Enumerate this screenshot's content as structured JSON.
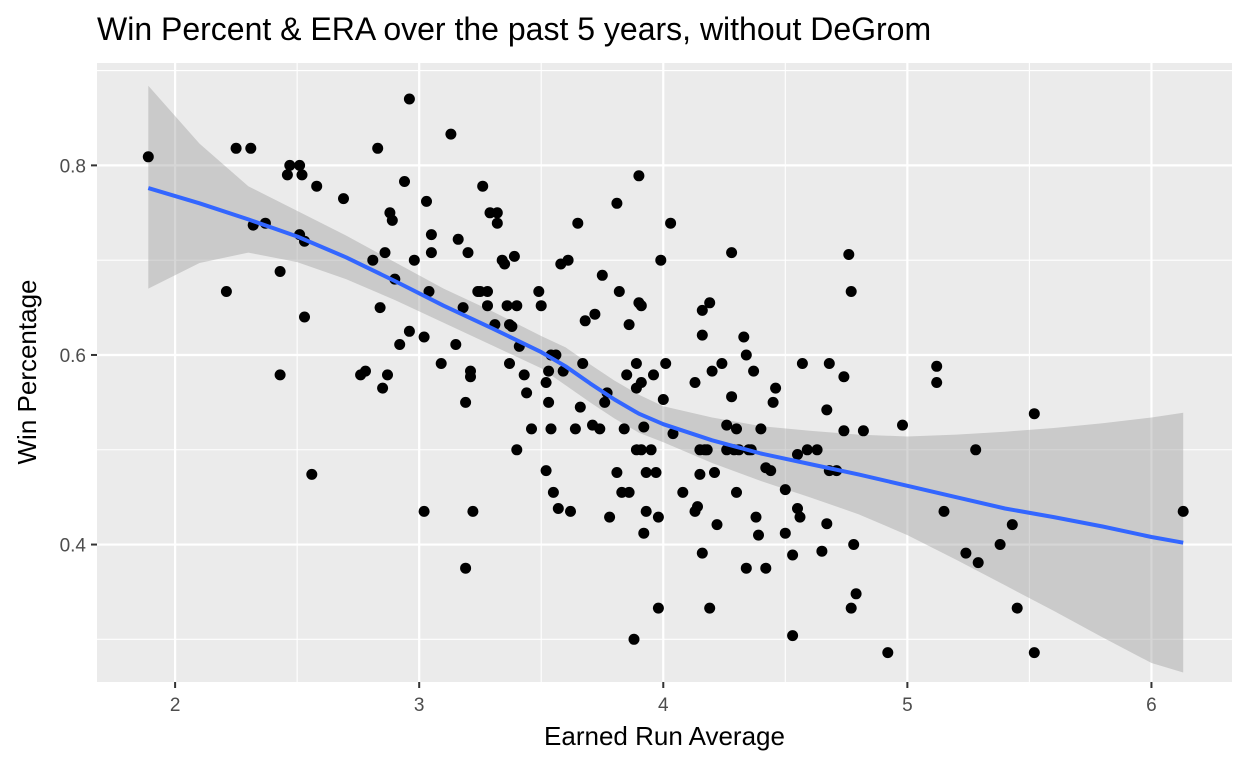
{
  "chart_data": {
    "type": "scatter",
    "title": "Win Percent & ERA over the past 5 years, without DeGrom",
    "xlabel": "Earned Run Average",
    "ylabel": "Win Percentage",
    "xlim": [
      1.68,
      6.33
    ],
    "ylim": [
      0.255,
      0.908
    ],
    "x_ticks": [
      2,
      3,
      4,
      5,
      6
    ],
    "x_tick_labels": [
      "2",
      "3",
      "4",
      "5",
      "6"
    ],
    "y_ticks": [
      0.4,
      0.6,
      0.8
    ],
    "y_tick_labels": [
      "0.4",
      "0.6",
      "0.8"
    ],
    "grid": true,
    "colors": {
      "panel": "#ebebeb",
      "grid": "#ffffff",
      "points": "#000000",
      "trend": "#3366ff",
      "ribbon": "#999999"
    },
    "points": [
      [
        1.89,
        0.809
      ],
      [
        2.21,
        0.667
      ],
      [
        2.25,
        0.818
      ],
      [
        2.31,
        0.818
      ],
      [
        2.32,
        0.737
      ],
      [
        2.37,
        0.739
      ],
      [
        2.43,
        0.688
      ],
      [
        2.43,
        0.579
      ],
      [
        2.46,
        0.79
      ],
      [
        2.47,
        0.8
      ],
      [
        2.51,
        0.8
      ],
      [
        2.51,
        0.727
      ],
      [
        2.52,
        0.79
      ],
      [
        2.53,
        0.72
      ],
      [
        2.53,
        0.64
      ],
      [
        2.56,
        0.474
      ],
      [
        2.58,
        0.778
      ],
      [
        2.69,
        0.765
      ],
      [
        2.76,
        0.579
      ],
      [
        2.78,
        0.583
      ],
      [
        2.81,
        0.7
      ],
      [
        2.83,
        0.818
      ],
      [
        2.84,
        0.65
      ],
      [
        2.85,
        0.565
      ],
      [
        2.86,
        0.708
      ],
      [
        2.87,
        0.579
      ],
      [
        2.88,
        0.75
      ],
      [
        2.89,
        0.742
      ],
      [
        2.9,
        0.68
      ],
      [
        2.92,
        0.611
      ],
      [
        2.94,
        0.783
      ],
      [
        2.96,
        0.625
      ],
      [
        2.96,
        0.87
      ],
      [
        2.98,
        0.7
      ],
      [
        3.02,
        0.619
      ],
      [
        3.02,
        0.435
      ],
      [
        3.03,
        0.762
      ],
      [
        3.04,
        0.667
      ],
      [
        3.05,
        0.727
      ],
      [
        3.05,
        0.708
      ],
      [
        3.09,
        0.591
      ],
      [
        3.13,
        0.833
      ],
      [
        3.15,
        0.611
      ],
      [
        3.16,
        0.722
      ],
      [
        3.18,
        0.65
      ],
      [
        3.19,
        0.55
      ],
      [
        3.19,
        0.375
      ],
      [
        3.2,
        0.708
      ],
      [
        3.21,
        0.583
      ],
      [
        3.21,
        0.577
      ],
      [
        3.22,
        0.435
      ],
      [
        3.24,
        0.667
      ],
      [
        3.25,
        0.667
      ],
      [
        3.26,
        0.778
      ],
      [
        3.28,
        0.652
      ],
      [
        3.28,
        0.667
      ],
      [
        3.29,
        0.75
      ],
      [
        3.31,
        0.632
      ],
      [
        3.32,
        0.75
      ],
      [
        3.32,
        0.739
      ],
      [
        3.34,
        0.7
      ],
      [
        3.35,
        0.696
      ],
      [
        3.36,
        0.652
      ],
      [
        3.37,
        0.632
      ],
      [
        3.37,
        0.591
      ],
      [
        3.38,
        0.63
      ],
      [
        3.39,
        0.704
      ],
      [
        3.4,
        0.652
      ],
      [
        3.4,
        0.5
      ],
      [
        3.41,
        0.609
      ],
      [
        3.43,
        0.579
      ],
      [
        3.44,
        0.56
      ],
      [
        3.46,
        0.522
      ],
      [
        3.49,
        0.667
      ],
      [
        3.5,
        0.652
      ],
      [
        3.52,
        0.571
      ],
      [
        3.52,
        0.478
      ],
      [
        3.53,
        0.55
      ],
      [
        3.53,
        0.583
      ],
      [
        3.54,
        0.6
      ],
      [
        3.54,
        0.522
      ],
      [
        3.55,
        0.455
      ],
      [
        3.56,
        0.6
      ],
      [
        3.57,
        0.438
      ],
      [
        3.58,
        0.696
      ],
      [
        3.59,
        0.583
      ],
      [
        3.61,
        0.7
      ],
      [
        3.62,
        0.435
      ],
      [
        3.64,
        0.522
      ],
      [
        3.65,
        0.739
      ],
      [
        3.66,
        0.545
      ],
      [
        3.67,
        0.591
      ],
      [
        3.68,
        0.636
      ],
      [
        3.71,
        0.526
      ],
      [
        3.72,
        0.643
      ],
      [
        3.74,
        0.522
      ],
      [
        3.75,
        0.684
      ],
      [
        3.76,
        0.55
      ],
      [
        3.77,
        0.56
      ],
      [
        3.78,
        0.429
      ],
      [
        3.81,
        0.76
      ],
      [
        3.81,
        0.476
      ],
      [
        3.82,
        0.667
      ],
      [
        3.83,
        0.455
      ],
      [
        3.84,
        0.522
      ],
      [
        3.85,
        0.579
      ],
      [
        3.86,
        0.455
      ],
      [
        3.86,
        0.632
      ],
      [
        3.88,
        0.3
      ],
      [
        3.89,
        0.591
      ],
      [
        3.89,
        0.565
      ],
      [
        3.89,
        0.5
      ],
      [
        3.9,
        0.789
      ],
      [
        3.9,
        0.655
      ],
      [
        3.91,
        0.571
      ],
      [
        3.91,
        0.652
      ],
      [
        3.91,
        0.5
      ],
      [
        3.92,
        0.524
      ],
      [
        3.92,
        0.412
      ],
      [
        3.93,
        0.476
      ],
      [
        3.93,
        0.435
      ],
      [
        3.95,
        0.5
      ],
      [
        3.96,
        0.579
      ],
      [
        3.97,
        0.476
      ],
      [
        3.98,
        0.429
      ],
      [
        3.98,
        0.333
      ],
      [
        3.99,
        0.7
      ],
      [
        4.0,
        0.553
      ],
      [
        4.01,
        0.591
      ],
      [
        4.03,
        0.739
      ],
      [
        4.04,
        0.517
      ],
      [
        4.08,
        0.455
      ],
      [
        4.13,
        0.571
      ],
      [
        4.13,
        0.435
      ],
      [
        4.14,
        0.44
      ],
      [
        4.15,
        0.474
      ],
      [
        4.15,
        0.5
      ],
      [
        4.16,
        0.647
      ],
      [
        4.16,
        0.621
      ],
      [
        4.16,
        0.391
      ],
      [
        4.17,
        0.5
      ],
      [
        4.18,
        0.5
      ],
      [
        4.19,
        0.655
      ],
      [
        4.19,
        0.333
      ],
      [
        4.2,
        0.583
      ],
      [
        4.21,
        0.476
      ],
      [
        4.22,
        0.421
      ],
      [
        4.24,
        0.591
      ],
      [
        4.26,
        0.526
      ],
      [
        4.26,
        0.5
      ],
      [
        4.28,
        0.708
      ],
      [
        4.28,
        0.556
      ],
      [
        4.29,
        0.5
      ],
      [
        4.3,
        0.522
      ],
      [
        4.3,
        0.455
      ],
      [
        4.31,
        0.5
      ],
      [
        4.33,
        0.619
      ],
      [
        4.34,
        0.6
      ],
      [
        4.34,
        0.375
      ],
      [
        4.35,
        0.5
      ],
      [
        4.36,
        0.5
      ],
      [
        4.37,
        0.583
      ],
      [
        4.38,
        0.429
      ],
      [
        4.39,
        0.41
      ],
      [
        4.4,
        0.522
      ],
      [
        4.42,
        0.375
      ],
      [
        4.42,
        0.481
      ],
      [
        4.44,
        0.478
      ],
      [
        4.45,
        0.55
      ],
      [
        4.46,
        0.565
      ],
      [
        4.5,
        0.458
      ],
      [
        4.5,
        0.412
      ],
      [
        4.53,
        0.304
      ],
      [
        4.53,
        0.389
      ],
      [
        4.55,
        0.438
      ],
      [
        4.55,
        0.495
      ],
      [
        4.56,
        0.429
      ],
      [
        4.57,
        0.591
      ],
      [
        4.59,
        0.5
      ],
      [
        4.63,
        0.5
      ],
      [
        4.65,
        0.393
      ],
      [
        4.67,
        0.542
      ],
      [
        4.67,
        0.422
      ],
      [
        4.68,
        0.591
      ],
      [
        4.68,
        0.478
      ],
      [
        4.71,
        0.478
      ],
      [
        4.74,
        0.52
      ],
      [
        4.74,
        0.577
      ],
      [
        4.76,
        0.706
      ],
      [
        4.77,
        0.667
      ],
      [
        4.77,
        0.333
      ],
      [
        4.78,
        0.4
      ],
      [
        4.79,
        0.348
      ],
      [
        4.82,
        0.52
      ],
      [
        4.92,
        0.286
      ],
      [
        4.98,
        0.526
      ],
      [
        5.12,
        0.588
      ],
      [
        5.12,
        0.571
      ],
      [
        5.15,
        0.435
      ],
      [
        5.24,
        0.391
      ],
      [
        5.28,
        0.5
      ],
      [
        5.29,
        0.381
      ],
      [
        5.38,
        0.4
      ],
      [
        5.43,
        0.421
      ],
      [
        5.45,
        0.333
      ],
      [
        5.52,
        0.538
      ],
      [
        5.52,
        0.286
      ],
      [
        6.13,
        0.435
      ]
    ],
    "trend": {
      "method": "loess",
      "x": [
        1.89,
        2.1,
        2.3,
        2.5,
        2.7,
        2.9,
        3.1,
        3.3,
        3.5,
        3.6,
        3.7,
        3.8,
        3.9,
        4.0,
        4.2,
        4.4,
        4.6,
        4.8,
        5.0,
        5.2,
        5.4,
        5.6,
        5.8,
        6.0,
        6.13
      ],
      "y": [
        0.776,
        0.76,
        0.743,
        0.725,
        0.703,
        0.678,
        0.652,
        0.628,
        0.603,
        0.588,
        0.57,
        0.553,
        0.538,
        0.527,
        0.51,
        0.496,
        0.485,
        0.474,
        0.462,
        0.45,
        0.438,
        0.429,
        0.419,
        0.408,
        0.402
      ],
      "lower": [
        0.67,
        0.697,
        0.708,
        0.698,
        0.68,
        0.658,
        0.634,
        0.61,
        0.586,
        0.568,
        0.55,
        0.533,
        0.518,
        0.508,
        0.486,
        0.467,
        0.45,
        0.432,
        0.41,
        0.384,
        0.357,
        0.33,
        0.302,
        0.275,
        0.265
      ],
      "upper": [
        0.884,
        0.823,
        0.778,
        0.752,
        0.726,
        0.698,
        0.67,
        0.646,
        0.62,
        0.608,
        0.59,
        0.573,
        0.558,
        0.546,
        0.534,
        0.525,
        0.52,
        0.516,
        0.514,
        0.516,
        0.519,
        0.523,
        0.528,
        0.534,
        0.539
      ]
    }
  }
}
